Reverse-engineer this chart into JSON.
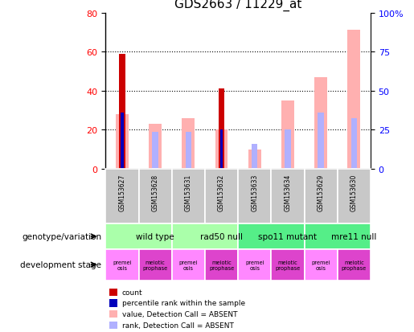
{
  "title": "GDS2663 / 11229_at",
  "samples": [
    "GSM153627",
    "GSM153628",
    "GSM153631",
    "GSM153632",
    "GSM153633",
    "GSM153634",
    "GSM153629",
    "GSM153630"
  ],
  "count_values": [
    59,
    0,
    0,
    41,
    0,
    0,
    0,
    0
  ],
  "percentile_rank_values": [
    29,
    0,
    0,
    20,
    0,
    0,
    0,
    0
  ],
  "absent_value_values": [
    28,
    23,
    26,
    20,
    10,
    35,
    47,
    71
  ],
  "absent_rank_values": [
    29,
    19,
    19,
    20,
    13,
    20,
    29,
    26
  ],
  "ylim_left": [
    0,
    80
  ],
  "ylim_right": [
    0,
    100
  ],
  "yticks_left": [
    0,
    20,
    40,
    60,
    80
  ],
  "ytick_labels_right": [
    "0",
    "25",
    "50",
    "75",
    "100%"
  ],
  "color_count": "#cc0000",
  "color_rank": "#0000bb",
  "color_absent_value": "#ffb0b0",
  "color_absent_rank": "#b0b0ff",
  "color_sample_bg": "#c8c8c8",
  "genotype_groups": [
    {
      "label": "wild type",
      "span": [
        0,
        2
      ],
      "color": "#aaffaa"
    },
    {
      "label": "rad50 null",
      "span": [
        2,
        4
      ],
      "color": "#aaffaa"
    },
    {
      "label": "spo11 mutant",
      "span": [
        4,
        6
      ],
      "color": "#55ee88"
    },
    {
      "label": "mre11 null",
      "span": [
        6,
        8
      ],
      "color": "#55ee88"
    }
  ],
  "dev_stage_colors": [
    "#ff88ff",
    "#dd44cc",
    "#ff88ff",
    "#dd44cc",
    "#ff88ff",
    "#dd44cc",
    "#ff88ff",
    "#dd44cc"
  ],
  "dev_stage_labels": [
    "premei\nosis",
    "meiotic\nprophase",
    "premei\nosis",
    "meiotic\nprophase",
    "premei\nosis",
    "meiotic\nprophase",
    "premei\nosis",
    "meiotic\nprophase"
  ],
  "legend_items": [
    {
      "label": "count",
      "color": "#cc0000"
    },
    {
      "label": "percentile rank within the sample",
      "color": "#0000bb"
    },
    {
      "label": "value, Detection Call = ABSENT",
      "color": "#ffb0b0"
    },
    {
      "label": "rank, Detection Call = ABSENT",
      "color": "#b0b0ff"
    }
  ]
}
